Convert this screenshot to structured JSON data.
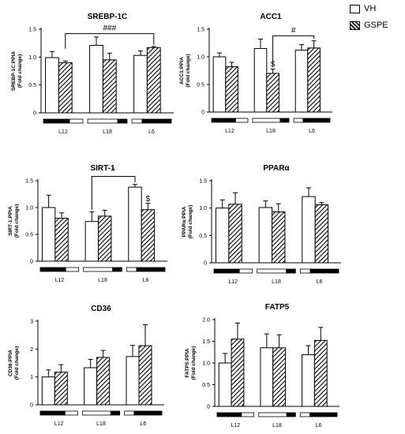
{
  "legend": [
    {
      "label": "VH",
      "pattern": "none"
    },
    {
      "label": "GSPE",
      "pattern": "hatch"
    }
  ],
  "colors": {
    "bar_fill": "#ffffff",
    "stroke": "#000000"
  },
  "chart_data": [
    {
      "type": "bar",
      "title": "SREBP-1C",
      "ylabel_line1": "SREBP-1C:PPIA",
      "ylabel_line2": "(Fold change)",
      "categories": [
        "L12",
        "L18",
        "L6"
      ],
      "ylim": [
        0,
        1.5
      ],
      "yticks": [
        0,
        0.5,
        1.0,
        1.5
      ],
      "yticklabels": [
        "0",
        "0.5",
        "1.0",
        "1.5"
      ],
      "series": [
        {
          "name": "VH",
          "values": [
            0.99,
            1.21,
            1.03
          ],
          "errors": [
            0.11,
            0.15,
            0.08
          ]
        },
        {
          "name": "GSPE",
          "values": [
            0.9,
            0.95,
            1.17
          ],
          "errors": [
            0.03,
            0.12,
            0.02
          ]
        }
      ],
      "light_cycle": [
        {
          "dark": 0.67,
          "dark_first": true
        },
        {
          "dark": 0.25,
          "dark_first": false
        },
        {
          "dark": 0.75,
          "dark_first": false
        }
      ],
      "annotations": [
        {
          "kind": "bracket",
          "text": "###",
          "from": [
            0,
            1
          ],
          "to": [
            2,
            1
          ],
          "y": 1.42,
          "drop_left": 1.15,
          "drop_right": 1.22
        }
      ]
    },
    {
      "type": "bar",
      "title": "ACC1",
      "ylabel_line1": "ACC1:PPIA",
      "ylabel_line2": "(Fold change)",
      "categories": [
        "L12",
        "L18",
        "L6"
      ],
      "ylim": [
        0,
        1.5
      ],
      "yticks": [
        0,
        0.5,
        1.0,
        1.5
      ],
      "yticklabels": [
        "0",
        "0.5",
        "1.0",
        "1.5"
      ],
      "series": [
        {
          "name": "VH",
          "values": [
            1.0,
            1.15,
            1.12
          ],
          "errors": [
            0.07,
            0.17,
            0.1
          ]
        },
        {
          "name": "GSPE",
          "values": [
            0.82,
            0.7,
            1.16
          ],
          "errors": [
            0.08,
            0.08,
            0.13
          ]
        }
      ],
      "light_cycle": [
        {
          "dark": 0.67,
          "dark_first": true
        },
        {
          "dark": 0.25,
          "dark_first": false
        },
        {
          "dark": 0.75,
          "dark_first": false
        }
      ],
      "annotations": [
        {
          "kind": "bracket",
          "text": "#",
          "from": [
            1,
            1
          ],
          "to": [
            2,
            1
          ],
          "y": 1.38,
          "drop_left": 0.83,
          "drop_right": 1.33
        },
        {
          "kind": "label",
          "text": "$",
          "at": [
            1,
            1
          ],
          "y": 0.82
        }
      ]
    },
    {
      "type": "bar",
      "title": "SIRT-1",
      "ylabel_line1": "SIRT-1:PPIA",
      "ylabel_line2": "(Fold change)",
      "categories": [
        "L12",
        "L18",
        "L6"
      ],
      "ylim": [
        0,
        1.5
      ],
      "yticks": [
        0,
        0.5,
        1.0,
        1.5
      ],
      "yticklabels": [
        "0",
        "0.5",
        "1.0",
        "1.5"
      ],
      "series": [
        {
          "name": "VH",
          "values": [
            1.0,
            0.74,
            1.38
          ],
          "errors": [
            0.23,
            0.18,
            0.05
          ]
        },
        {
          "name": "GSPE",
          "values": [
            0.8,
            0.84,
            0.96
          ],
          "errors": [
            0.1,
            0.11,
            0.12
          ]
        }
      ],
      "light_cycle": [
        {
          "dark": 0.67,
          "dark_first": true
        },
        {
          "dark": 0.25,
          "dark_first": false
        },
        {
          "dark": 0.75,
          "dark_first": false
        }
      ],
      "annotations": [
        {
          "kind": "bracket",
          "text": "*",
          "from": [
            1,
            0
          ],
          "to": [
            2,
            0
          ],
          "y": 1.58,
          "drop_left": 0.96,
          "drop_right": 1.47
        },
        {
          "kind": "label",
          "text": "$",
          "at": [
            2,
            1
          ],
          "y": 1.12
        }
      ]
    },
    {
      "type": "bar",
      "title": "PPARα",
      "ylabel_line1": "PPARα:PPIA",
      "ylabel_line2": "(Fold change)",
      "categories": [
        "L12",
        "L18",
        "L6"
      ],
      "ylim": [
        0,
        1.5
      ],
      "yticks": [
        0,
        0.5,
        1.0,
        1.5
      ],
      "yticklabels": [
        "0",
        "0.5",
        "1.0",
        "1.5"
      ],
      "series": [
        {
          "name": "VH",
          "values": [
            1.0,
            1.01,
            1.21
          ],
          "errors": [
            0.15,
            0.12,
            0.16
          ]
        },
        {
          "name": "GSPE",
          "values": [
            1.07,
            0.93,
            1.06
          ],
          "errors": [
            0.21,
            0.15,
            0.04
          ]
        }
      ],
      "light_cycle": [
        {
          "dark": 0.67,
          "dark_first": true
        },
        {
          "dark": 0.25,
          "dark_first": false
        },
        {
          "dark": 0.75,
          "dark_first": false
        }
      ],
      "annotations": []
    },
    {
      "type": "bar",
      "title": "CD36",
      "ylabel_line1": "CD36:PPIA",
      "ylabel_line2": "(Fold change)",
      "categories": [
        "L12",
        "L18",
        "L6"
      ],
      "ylim": [
        0,
        3
      ],
      "yticks": [
        0,
        1,
        2,
        3
      ],
      "yticklabels": [
        "0",
        "1",
        "2",
        "3"
      ],
      "series": [
        {
          "name": "VH",
          "values": [
            1.0,
            1.33,
            1.73
          ],
          "errors": [
            0.25,
            0.3,
            0.4
          ]
        },
        {
          "name": "GSPE",
          "values": [
            1.17,
            1.7,
            2.12
          ],
          "errors": [
            0.27,
            0.25,
            0.75
          ]
        }
      ],
      "light_cycle": [
        {
          "dark": 0.67,
          "dark_first": true
        },
        {
          "dark": 0.25,
          "dark_first": false
        },
        {
          "dark": 0.75,
          "dark_first": false
        }
      ],
      "annotations": []
    },
    {
      "type": "bar",
      "title": "FATP5",
      "ylabel_line1": "FATP5:PPIA",
      "ylabel_line2": "(Fold change)",
      "categories": [
        "L12",
        "L18",
        "L6"
      ],
      "ylim": [
        0,
        2.0
      ],
      "yticks": [
        0,
        0.5,
        1.0,
        1.5,
        2.0
      ],
      "yticklabels": [
        "0",
        "0.5",
        "1.0",
        "1.5",
        "2.0"
      ],
      "series": [
        {
          "name": "VH",
          "values": [
            1.0,
            1.35,
            1.19
          ],
          "errors": [
            0.22,
            0.32,
            0.21
          ]
        },
        {
          "name": "GSPE",
          "values": [
            1.55,
            1.35,
            1.52
          ],
          "errors": [
            0.37,
            0.3,
            0.3
          ]
        }
      ],
      "light_cycle": [
        {
          "dark": 0.67,
          "dark_first": true
        },
        {
          "dark": 0.25,
          "dark_first": false
        },
        {
          "dark": 0.75,
          "dark_first": false
        }
      ],
      "annotations": []
    }
  ]
}
